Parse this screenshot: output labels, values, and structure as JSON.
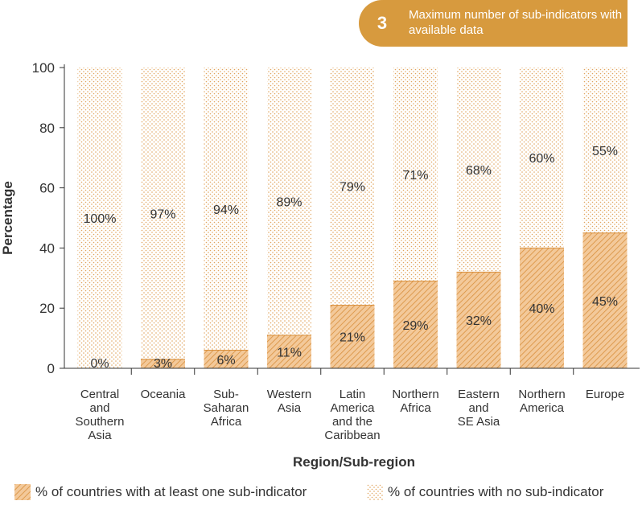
{
  "badge": {
    "number": "3",
    "text": "Maximum number of sub-indicators with available data"
  },
  "colors": {
    "accent": "#d79a3e",
    "hatch": "#e0a45a",
    "dots": "#e8b77a",
    "axis": "#333333"
  },
  "chart_data": {
    "type": "bar",
    "stacked": true,
    "xlabel": "Region/Sub-region",
    "ylabel": "Percentage",
    "ylim": [
      0,
      100
    ],
    "yticks": [
      "0",
      "20",
      "40",
      "60",
      "80",
      "100"
    ],
    "categories": [
      [
        "Central",
        "and",
        "Southern",
        "Asia"
      ],
      [
        "Oceania"
      ],
      [
        "Sub-",
        "Saharan",
        "Africa"
      ],
      [
        "Western",
        "Asia"
      ],
      [
        "Latin",
        "America",
        "and the",
        "Caribbean"
      ],
      [
        "Northern",
        "Africa"
      ],
      [
        "Eastern",
        "and",
        "SE Asia"
      ],
      [
        "Northern",
        "America"
      ],
      [
        "Europe"
      ]
    ],
    "series": [
      {
        "name": "% of countries with at least one sub-indicator",
        "values": [
          0,
          3,
          6,
          11,
          21,
          29,
          32,
          40,
          45
        ],
        "labels": [
          "0%",
          "3%",
          "6%",
          "11%",
          "21%",
          "29%",
          "32%",
          "40%",
          "45%"
        ],
        "fill": "hatched"
      },
      {
        "name": "% of countries with no sub-indicator",
        "values": [
          100,
          97,
          94,
          89,
          79,
          71,
          68,
          60,
          55
        ],
        "labels": [
          "100%",
          "97%",
          "94%",
          "89%",
          "79%",
          "71%",
          "68%",
          "60%",
          "55%"
        ],
        "fill": "dotted"
      }
    ],
    "grid": false,
    "legend_position": "bottom"
  }
}
